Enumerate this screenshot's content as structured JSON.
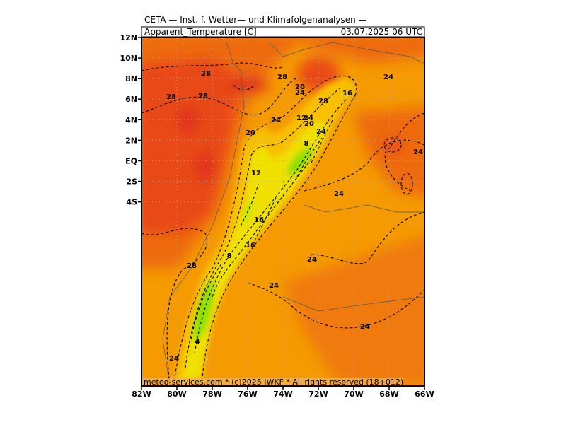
{
  "map": {
    "title": "CETA — Inst. f. Wetter— und Klimafolgenanalysen —",
    "variable": "Apparent_Temperature [C]",
    "datetime": "03.07.2025 06 UTC",
    "credit": "meteo-services.com * (c)2025 IWKF * All rights reserved (18+012)",
    "lat_ticks": [
      "12N",
      "10N",
      "8N",
      "6N",
      "4N",
      "2N",
      "EQ",
      "2S",
      "4S"
    ],
    "lon_ticks": [
      "82W",
      "80W",
      "78W",
      "76W",
      "74W",
      "72W",
      "70W",
      "68W",
      "66W"
    ],
    "contour_labels": [
      28,
      28,
      28,
      28,
      20,
      24,
      16,
      28,
      24,
      24,
      12,
      24,
      20,
      24,
      20,
      8,
      24,
      12,
      24,
      16,
      16,
      8,
      24,
      28,
      24,
      24,
      4,
      24
    ]
  }
}
